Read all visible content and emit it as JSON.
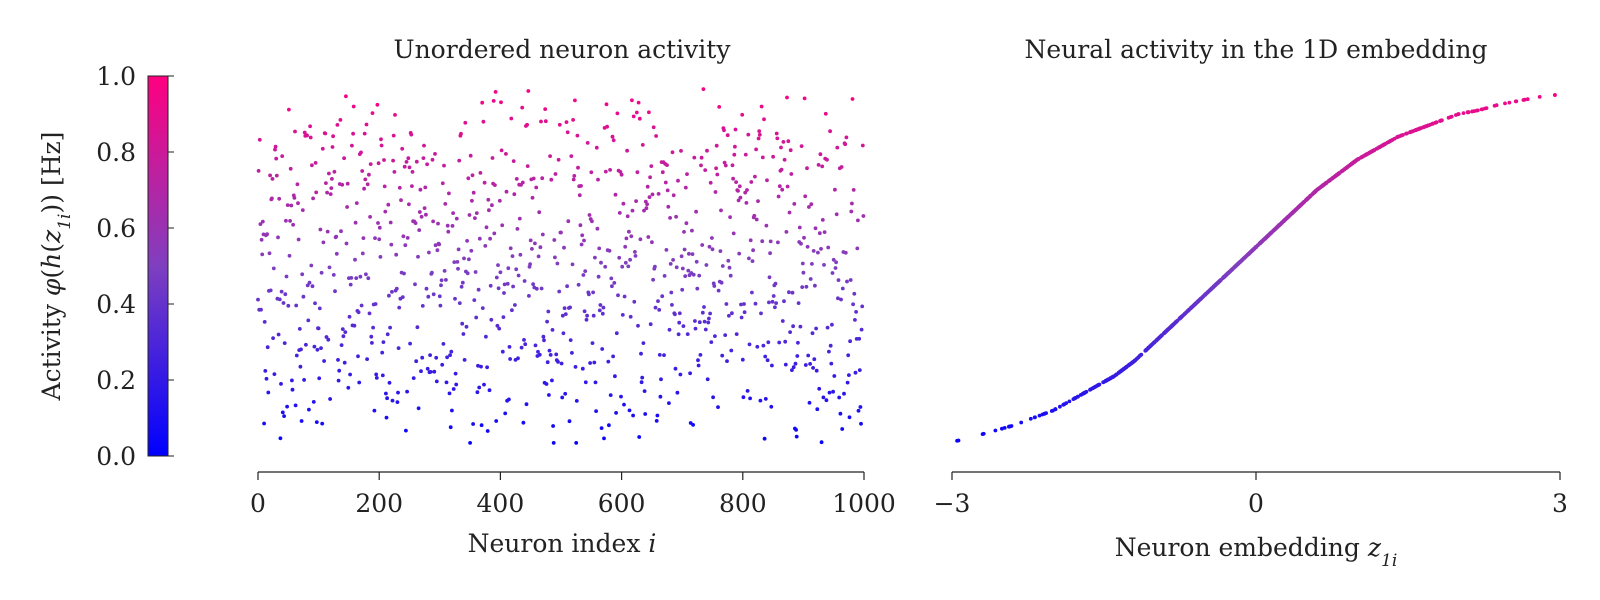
{
  "colorbar": {
    "label_prefix": "Activity ",
    "label_phi": "φ",
    "label_paren_open": "(",
    "label_h": "h",
    "label_inner_open": "(",
    "label_z": "z",
    "label_sub": "1i",
    "label_close": "))",
    "label_unit": " [Hz]",
    "ticks": [
      "0.0",
      "0.2",
      "0.4",
      "0.6",
      "0.8",
      "1.0"
    ],
    "tick_values": [
      0.0,
      0.2,
      0.4,
      0.6,
      0.8,
      1.0
    ],
    "range": [
      0.0,
      1.0
    ],
    "color_low": "#0000ff",
    "color_mid": "#7f3fbf",
    "color_high": "#ff007f"
  },
  "chart_data": [
    {
      "type": "scatter",
      "title": "Unordered neuron activity",
      "xlabel_text": "Neuron index ",
      "xlabel_var": "i",
      "xlim": [
        0,
        1000
      ],
      "ylim": [
        0.0,
        1.0
      ],
      "xticks": [
        0,
        200,
        400,
        600,
        800,
        1000
      ],
      "xtick_labels": [
        "0",
        "200",
        "400",
        "600",
        "800",
        "1000"
      ],
      "y_axis_visible": false,
      "grid": false,
      "n_points": 1000,
      "x_distribution": "neuron index 0–999",
      "y_distribution": "activity values spread between ~0.04 and ~0.95, colored by activity"
    },
    {
      "type": "scatter",
      "title": "Neural activity in the 1D embedding",
      "xlabel_text": "Neuron embedding ",
      "xlabel_var": "z",
      "xlabel_sub": "1i",
      "xlim": [
        -3,
        3
      ],
      "ylim": [
        0.0,
        1.0
      ],
      "xticks": [
        -3,
        0,
        3
      ],
      "xtick_labels": [
        "−3",
        "0",
        "3"
      ],
      "y_axis_visible": false,
      "grid": false,
      "series": [
        {
          "x": [
            -2.95,
            -2.8,
            -2.6,
            -2.4,
            -2.2,
            -2.0,
            -1.8,
            -1.6,
            -1.4,
            -1.2,
            -1.0,
            -0.8,
            -0.6,
            -0.4,
            -0.2,
            0.0,
            0.2,
            0.4,
            0.6,
            0.8,
            1.0,
            1.2,
            1.4,
            1.6,
            1.8,
            2.0,
            2.2,
            2.4,
            2.6,
            2.8,
            2.95
          ],
          "y": [
            0.04,
            0.05,
            0.065,
            0.08,
            0.1,
            0.12,
            0.15,
            0.18,
            0.21,
            0.25,
            0.3,
            0.35,
            0.4,
            0.45,
            0.5,
            0.55,
            0.6,
            0.65,
            0.7,
            0.74,
            0.78,
            0.81,
            0.84,
            0.86,
            0.88,
            0.9,
            0.91,
            0.925,
            0.935,
            0.945,
            0.95
          ]
        }
      ]
    }
  ]
}
